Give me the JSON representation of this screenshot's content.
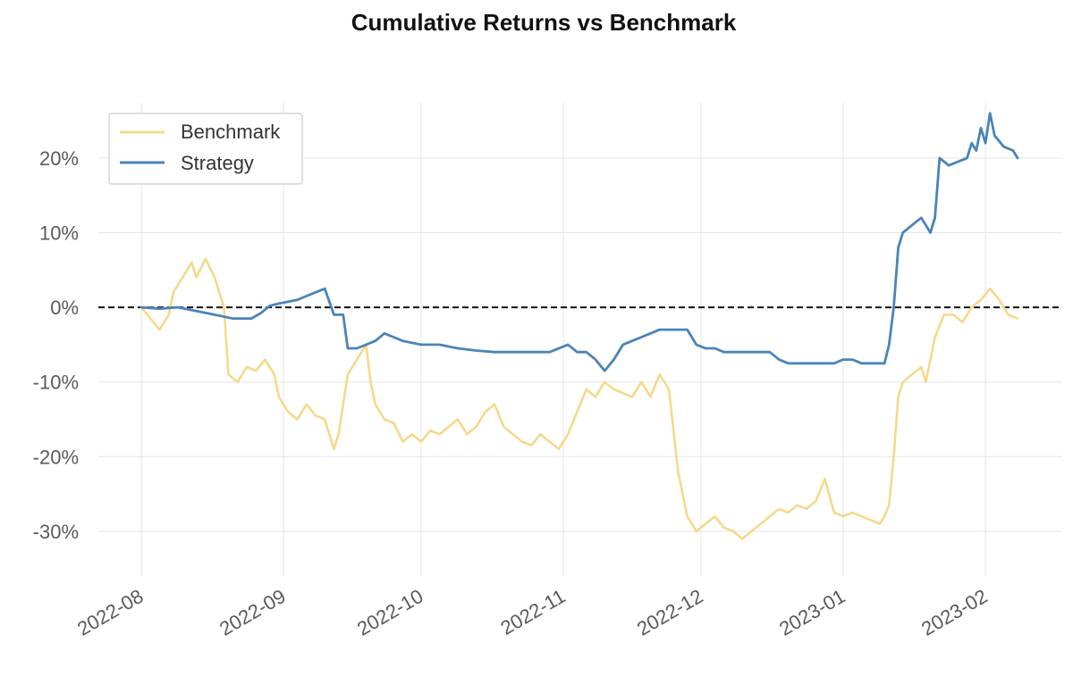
{
  "chart_data": {
    "type": "line",
    "title": "Cumulative Returns vs Benchmark",
    "xlabel": "",
    "ylabel": "",
    "x_axis": {
      "type": "date",
      "range": [
        "2022-08-01",
        "2023-02-08"
      ],
      "tick_values": [
        "2022-08-01",
        "2022-09-01",
        "2022-10-01",
        "2022-11-01",
        "2022-12-01",
        "2023-01-01",
        "2023-02-01"
      ],
      "tick_labels": [
        "2022-08",
        "2022-09",
        "2022-10",
        "2022-11",
        "2022-12",
        "2023-01",
        "2023-02"
      ]
    },
    "y_axis": {
      "unit": "percent",
      "range": [
        -36,
        28
      ],
      "tick_values": [
        20,
        10,
        0,
        -10,
        -20,
        -30
      ],
      "tick_labels": [
        "20%",
        "10%",
        "0%",
        "-10%",
        "-20%",
        "-30%"
      ]
    },
    "grid": true,
    "reference_line": {
      "y": 0,
      "style": "dashed",
      "color": "#111111"
    },
    "legend": {
      "position": "top-left",
      "entries": [
        "Benchmark",
        "Strategy"
      ]
    },
    "series": [
      {
        "name": "Benchmark",
        "color": "#f5d98a",
        "points": [
          [
            "2022-08-01",
            0
          ],
          [
            "2022-08-03",
            -1.5
          ],
          [
            "2022-08-05",
            -3
          ],
          [
            "2022-08-07",
            -1
          ],
          [
            "2022-08-08",
            2
          ],
          [
            "2022-08-10",
            4
          ],
          [
            "2022-08-12",
            6
          ],
          [
            "2022-08-13",
            4
          ],
          [
            "2022-08-15",
            6.5
          ],
          [
            "2022-08-17",
            4
          ],
          [
            "2022-08-19",
            0
          ],
          [
            "2022-08-20",
            -9
          ],
          [
            "2022-08-22",
            -10
          ],
          [
            "2022-08-24",
            -8
          ],
          [
            "2022-08-26",
            -8.5
          ],
          [
            "2022-08-28",
            -7
          ],
          [
            "2022-08-30",
            -9
          ],
          [
            "2022-08-31",
            -12
          ],
          [
            "2022-09-02",
            -14
          ],
          [
            "2022-09-04",
            -15
          ],
          [
            "2022-09-06",
            -13
          ],
          [
            "2022-09-08",
            -14.5
          ],
          [
            "2022-09-10",
            -15
          ],
          [
            "2022-09-12",
            -19
          ],
          [
            "2022-09-13",
            -17
          ],
          [
            "2022-09-15",
            -9
          ],
          [
            "2022-09-17",
            -7
          ],
          [
            "2022-09-19",
            -5
          ],
          [
            "2022-09-20",
            -10
          ],
          [
            "2022-09-21",
            -13
          ],
          [
            "2022-09-23",
            -15
          ],
          [
            "2022-09-25",
            -15.5
          ],
          [
            "2022-09-27",
            -18
          ],
          [
            "2022-09-29",
            -17
          ],
          [
            "2022-10-01",
            -18
          ],
          [
            "2022-10-03",
            -16.5
          ],
          [
            "2022-10-05",
            -17
          ],
          [
            "2022-10-07",
            -16
          ],
          [
            "2022-10-09",
            -15
          ],
          [
            "2022-10-11",
            -17
          ],
          [
            "2022-10-13",
            -16
          ],
          [
            "2022-10-15",
            -14
          ],
          [
            "2022-10-17",
            -13
          ],
          [
            "2022-10-19",
            -16
          ],
          [
            "2022-10-21",
            -17
          ],
          [
            "2022-10-23",
            -18
          ],
          [
            "2022-10-25",
            -18.5
          ],
          [
            "2022-10-27",
            -17
          ],
          [
            "2022-10-29",
            -18
          ],
          [
            "2022-10-31",
            -19
          ],
          [
            "2022-11-02",
            -17
          ],
          [
            "2022-11-04",
            -14
          ],
          [
            "2022-11-06",
            -11
          ],
          [
            "2022-11-08",
            -12
          ],
          [
            "2022-11-10",
            -10
          ],
          [
            "2022-11-12",
            -11
          ],
          [
            "2022-11-14",
            -11.5
          ],
          [
            "2022-11-16",
            -12
          ],
          [
            "2022-11-18",
            -10
          ],
          [
            "2022-11-20",
            -12
          ],
          [
            "2022-11-22",
            -9
          ],
          [
            "2022-11-24",
            -11
          ],
          [
            "2022-11-26",
            -22
          ],
          [
            "2022-11-28",
            -28
          ],
          [
            "2022-11-30",
            -30
          ],
          [
            "2022-12-02",
            -29
          ],
          [
            "2022-12-04",
            -28
          ],
          [
            "2022-12-06",
            -29.5
          ],
          [
            "2022-12-08",
            -30
          ],
          [
            "2022-12-10",
            -31
          ],
          [
            "2022-12-12",
            -30
          ],
          [
            "2022-12-14",
            -29
          ],
          [
            "2022-12-16",
            -28
          ],
          [
            "2022-12-18",
            -27
          ],
          [
            "2022-12-20",
            -27.5
          ],
          [
            "2022-12-22",
            -26.5
          ],
          [
            "2022-12-24",
            -27
          ],
          [
            "2022-12-26",
            -26
          ],
          [
            "2022-12-28",
            -23
          ],
          [
            "2022-12-30",
            -27.5
          ],
          [
            "2023-01-01",
            -28
          ],
          [
            "2023-01-03",
            -27.5
          ],
          [
            "2023-01-05",
            -28
          ],
          [
            "2023-01-07",
            -28.5
          ],
          [
            "2023-01-09",
            -29
          ],
          [
            "2023-01-10",
            -28
          ],
          [
            "2023-01-11",
            -26.5
          ],
          [
            "2023-01-12",
            -20
          ],
          [
            "2023-01-13",
            -12
          ],
          [
            "2023-01-14",
            -10
          ],
          [
            "2023-01-16",
            -9
          ],
          [
            "2023-01-18",
            -8
          ],
          [
            "2023-01-19",
            -10
          ],
          [
            "2023-01-21",
            -4
          ],
          [
            "2023-01-23",
            -1
          ],
          [
            "2023-01-25",
            -1
          ],
          [
            "2023-01-27",
            -2
          ],
          [
            "2023-01-29",
            0
          ],
          [
            "2023-01-31",
            1
          ],
          [
            "2023-02-02",
            2.5
          ],
          [
            "2023-02-04",
            1
          ],
          [
            "2023-02-06",
            -1
          ],
          [
            "2023-02-08",
            -1.5
          ]
        ]
      },
      {
        "name": "Strategy",
        "color": "#4a84b8",
        "points": [
          [
            "2022-08-01",
            0
          ],
          [
            "2022-08-05",
            -0.2
          ],
          [
            "2022-08-09",
            0
          ],
          [
            "2022-08-13",
            -0.5
          ],
          [
            "2022-08-17",
            -1
          ],
          [
            "2022-08-21",
            -1.5
          ],
          [
            "2022-08-25",
            -1.5
          ],
          [
            "2022-08-27",
            -0.8
          ],
          [
            "2022-08-29",
            0.2
          ],
          [
            "2022-08-31",
            0.5
          ],
          [
            "2022-09-04",
            1
          ],
          [
            "2022-09-06",
            1.5
          ],
          [
            "2022-09-08",
            2
          ],
          [
            "2022-09-10",
            2.5
          ],
          [
            "2022-09-12",
            -1
          ],
          [
            "2022-09-14",
            -1
          ],
          [
            "2022-09-15",
            -5.5
          ],
          [
            "2022-09-17",
            -5.5
          ],
          [
            "2022-09-19",
            -5
          ],
          [
            "2022-09-21",
            -4.5
          ],
          [
            "2022-09-23",
            -3.5
          ],
          [
            "2022-09-25",
            -4
          ],
          [
            "2022-09-27",
            -4.5
          ],
          [
            "2022-10-01",
            -5
          ],
          [
            "2022-10-05",
            -5
          ],
          [
            "2022-10-09",
            -5.5
          ],
          [
            "2022-10-13",
            -5.8
          ],
          [
            "2022-10-17",
            -6
          ],
          [
            "2022-10-21",
            -6
          ],
          [
            "2022-10-25",
            -6
          ],
          [
            "2022-10-29",
            -6
          ],
          [
            "2022-11-02",
            -5
          ],
          [
            "2022-11-04",
            -6
          ],
          [
            "2022-11-06",
            -6
          ],
          [
            "2022-11-08",
            -7
          ],
          [
            "2022-11-10",
            -8.5
          ],
          [
            "2022-11-12",
            -7
          ],
          [
            "2022-11-14",
            -5
          ],
          [
            "2022-11-16",
            -4.5
          ],
          [
            "2022-11-18",
            -4
          ],
          [
            "2022-11-20",
            -3.5
          ],
          [
            "2022-11-22",
            -3
          ],
          [
            "2022-11-24",
            -3
          ],
          [
            "2022-11-26",
            -3
          ],
          [
            "2022-11-28",
            -3
          ],
          [
            "2022-11-30",
            -5
          ],
          [
            "2022-12-02",
            -5.5
          ],
          [
            "2022-12-04",
            -5.5
          ],
          [
            "2022-12-06",
            -6
          ],
          [
            "2022-12-10",
            -6
          ],
          [
            "2022-12-14",
            -6
          ],
          [
            "2022-12-16",
            -6
          ],
          [
            "2022-12-18",
            -7
          ],
          [
            "2022-12-20",
            -7.5
          ],
          [
            "2022-12-24",
            -7.5
          ],
          [
            "2022-12-28",
            -7.5
          ],
          [
            "2022-12-30",
            -7.5
          ],
          [
            "2023-01-01",
            -7
          ],
          [
            "2023-01-03",
            -7
          ],
          [
            "2023-01-05",
            -7.5
          ],
          [
            "2023-01-07",
            -7.5
          ],
          [
            "2023-01-09",
            -7.5
          ],
          [
            "2023-01-10",
            -7.5
          ],
          [
            "2023-01-11",
            -5
          ],
          [
            "2023-01-12",
            0
          ],
          [
            "2023-01-13",
            8
          ],
          [
            "2023-01-14",
            10
          ],
          [
            "2023-01-16",
            11
          ],
          [
            "2023-01-18",
            12
          ],
          [
            "2023-01-20",
            10
          ],
          [
            "2023-01-21",
            12
          ],
          [
            "2023-01-22",
            20
          ],
          [
            "2023-01-24",
            19
          ],
          [
            "2023-01-26",
            19.5
          ],
          [
            "2023-01-28",
            20
          ],
          [
            "2023-01-29",
            22
          ],
          [
            "2023-01-30",
            21
          ],
          [
            "2023-01-31",
            24
          ],
          [
            "2023-02-01",
            22
          ],
          [
            "2023-02-02",
            26
          ],
          [
            "2023-02-03",
            23
          ],
          [
            "2023-02-05",
            21.5
          ],
          [
            "2023-02-07",
            21
          ],
          [
            "2023-02-08",
            20
          ]
        ]
      }
    ]
  }
}
